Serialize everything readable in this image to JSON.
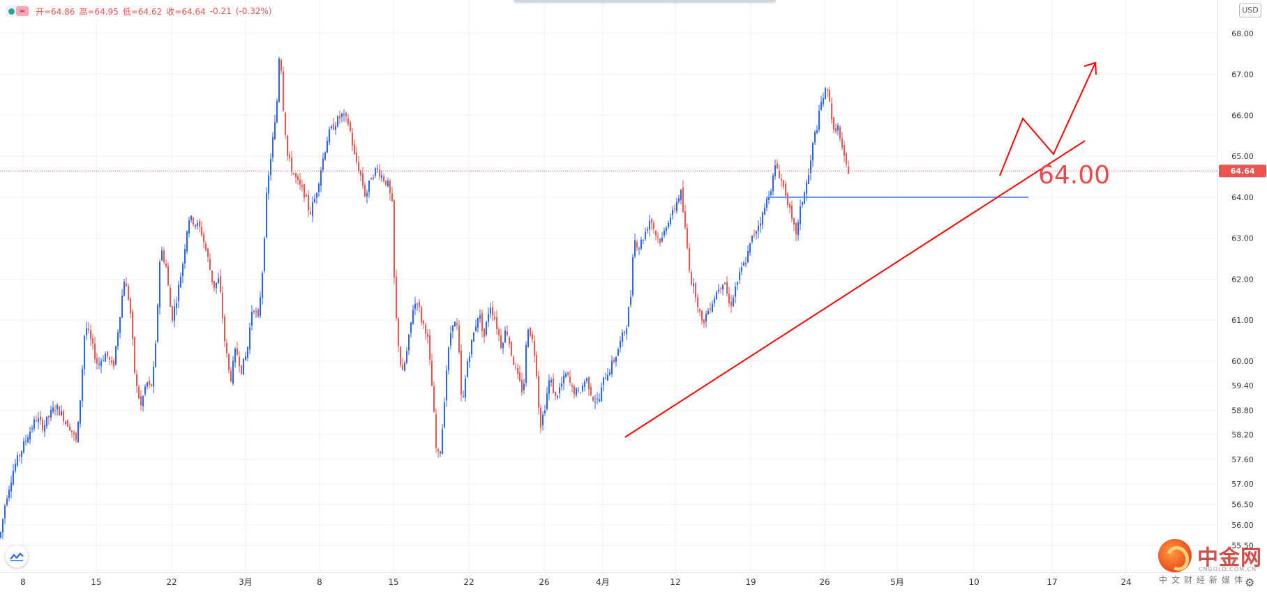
{
  "ohlc": {
    "open": "开=64.86",
    "high": "高=64.95",
    "low": "低=64.62",
    "close": "收=64.64",
    "change": "-0.21",
    "change_pct": "(-0.32%)"
  },
  "currency": "USD",
  "current_price_label": "64.64",
  "annotation_label": "64.00",
  "watermark": {
    "title": "中金网",
    "url": "CNGOLD.COM.CN",
    "subtitle": "中文财经新媒体"
  },
  "colors": {
    "up": "#2962ff",
    "down": "#ef5350",
    "annotation": "#ff0000",
    "support": "#5b8def",
    "grid": "#eef1f6"
  },
  "chart_data": {
    "type": "candlestick",
    "ylim": [
      55.2,
      68.2
    ],
    "grid": true,
    "y_ticks": [
      "68.00",
      "67.00",
      "66.00",
      "65.00",
      "64.00",
      "63.00",
      "62.00",
      "61.00",
      "60.00",
      "59.40",
      "58.80",
      "58.20",
      "57.60",
      "57.00",
      "56.50",
      "56.00",
      "55.50"
    ],
    "x_ticks": [
      "8",
      "15",
      "22",
      "3月",
      "8",
      "15",
      "22",
      "26",
      "4月",
      "12",
      "19",
      "26",
      "5月",
      "10",
      "17",
      "24"
    ],
    "price_path": [
      [
        0,
        55.7
      ],
      [
        8,
        56.6
      ],
      [
        20,
        57.4
      ],
      [
        30,
        57.8
      ],
      [
        40,
        58.2
      ],
      [
        52,
        58.6
      ],
      [
        62,
        58.4
      ],
      [
        72,
        58.7
      ],
      [
        80,
        58.9
      ],
      [
        92,
        58.6
      ],
      [
        100,
        58.4
      ],
      [
        110,
        58.0
      ],
      [
        116,
        59.3
      ],
      [
        122,
        60.9
      ],
      [
        130,
        60.5
      ],
      [
        140,
        59.9
      ],
      [
        152,
        60.2
      ],
      [
        162,
        59.8
      ],
      [
        170,
        60.9
      ],
      [
        178,
        62.0
      ],
      [
        186,
        61.4
      ],
      [
        194,
        59.5
      ],
      [
        202,
        58.9
      ],
      [
        210,
        59.5
      ],
      [
        216,
        59.3
      ],
      [
        222,
        60.0
      ],
      [
        230,
        62.8
      ],
      [
        238,
        62.3
      ],
      [
        246,
        61.0
      ],
      [
        254,
        61.6
      ],
      [
        262,
        62.4
      ],
      [
        270,
        63.5
      ],
      [
        278,
        63.4
      ],
      [
        288,
        63.2
      ],
      [
        298,
        62.5
      ],
      [
        306,
        61.8
      ],
      [
        314,
        62.0
      ],
      [
        322,
        60.5
      ],
      [
        330,
        59.5
      ],
      [
        338,
        60.3
      ],
      [
        346,
        59.8
      ],
      [
        354,
        60.2
      ],
      [
        362,
        61.4
      ],
      [
        370,
        61.0
      ],
      [
        376,
        62.2
      ],
      [
        382,
        64.0
      ],
      [
        390,
        65.3
      ],
      [
        396,
        66.0
      ],
      [
        401,
        67.8
      ],
      [
        406,
        66.2
      ],
      [
        412,
        65.0
      ],
      [
        420,
        64.6
      ],
      [
        428,
        64.3
      ],
      [
        436,
        64.1
      ],
      [
        444,
        63.6
      ],
      [
        452,
        64.0
      ],
      [
        460,
        64.7
      ],
      [
        470,
        65.5
      ],
      [
        480,
        65.8
      ],
      [
        490,
        66.0
      ],
      [
        500,
        65.8
      ],
      [
        508,
        65.0
      ],
      [
        516,
        64.6
      ],
      [
        524,
        64.0
      ],
      [
        532,
        64.5
      ],
      [
        540,
        64.7
      ],
      [
        548,
        64.5
      ],
      [
        556,
        64.3
      ],
      [
        562,
        63.8
      ],
      [
        566,
        61.4
      ],
      [
        570,
        60.6
      ],
      [
        576,
        59.6
      ],
      [
        584,
        60.3
      ],
      [
        592,
        61.3
      ],
      [
        598,
        61.5
      ],
      [
        604,
        61.0
      ],
      [
        612,
        60.7
      ],
      [
        620,
        59.2
      ],
      [
        626,
        57.6
      ],
      [
        632,
        57.9
      ],
      [
        640,
        59.8
      ],
      [
        648,
        61.0
      ],
      [
        656,
        60.8
      ],
      [
        662,
        58.8
      ],
      [
        670,
        60.0
      ],
      [
        678,
        60.6
      ],
      [
        686,
        61.2
      ],
      [
        694,
        60.6
      ],
      [
        702,
        61.4
      ],
      [
        710,
        61.0
      ],
      [
        718,
        60.4
      ],
      [
        726,
        60.8
      ],
      [
        734,
        60.1
      ],
      [
        742,
        59.6
      ],
      [
        750,
        59.2
      ],
      [
        756,
        60.9
      ],
      [
        762,
        60.6
      ],
      [
        768,
        60.0
      ],
      [
        774,
        58.4
      ],
      [
        780,
        58.8
      ],
      [
        788,
        59.6
      ],
      [
        796,
        59.1
      ],
      [
        804,
        59.4
      ],
      [
        812,
        59.7
      ],
      [
        820,
        59.3
      ],
      [
        830,
        59.2
      ],
      [
        840,
        59.6
      ],
      [
        850,
        59.1
      ],
      [
        858,
        59.0
      ],
      [
        866,
        59.6
      ],
      [
        874,
        59.8
      ],
      [
        882,
        60.1
      ],
      [
        890,
        60.5
      ],
      [
        898,
        60.9
      ],
      [
        904,
        61.6
      ],
      [
        908,
        63.0
      ],
      [
        916,
        62.8
      ],
      [
        924,
        63.1
      ],
      [
        932,
        63.5
      ],
      [
        940,
        63.1
      ],
      [
        948,
        62.9
      ],
      [
        956,
        63.4
      ],
      [
        964,
        63.6
      ],
      [
        972,
        64.0
      ],
      [
        976,
        64.1
      ],
      [
        982,
        63.2
      ],
      [
        990,
        62.0
      ],
      [
        998,
        61.6
      ],
      [
        1006,
        60.9
      ],
      [
        1014,
        61.2
      ],
      [
        1022,
        61.5
      ],
      [
        1030,
        61.8
      ],
      [
        1038,
        62.0
      ],
      [
        1046,
        61.3
      ],
      [
        1054,
        61.8
      ],
      [
        1062,
        62.2
      ],
      [
        1070,
        62.5
      ],
      [
        1078,
        63.0
      ],
      [
        1086,
        63.3
      ],
      [
        1094,
        63.6
      ],
      [
        1100,
        64.0
      ],
      [
        1106,
        64.3
      ],
      [
        1112,
        64.8
      ],
      [
        1120,
        64.4
      ],
      [
        1128,
        64.0
      ],
      [
        1136,
        63.3
      ],
      [
        1142,
        63.1
      ],
      [
        1148,
        63.8
      ],
      [
        1154,
        64.2
      ],
      [
        1160,
        64.6
      ],
      [
        1166,
        65.4
      ],
      [
        1172,
        65.8
      ],
      [
        1178,
        66.4
      ],
      [
        1184,
        66.6
      ],
      [
        1190,
        66.4
      ],
      [
        1194,
        65.5
      ],
      [
        1200,
        65.8
      ],
      [
        1206,
        65.2
      ],
      [
        1212,
        64.8
      ],
      [
        1216,
        64.64
      ]
    ]
  }
}
